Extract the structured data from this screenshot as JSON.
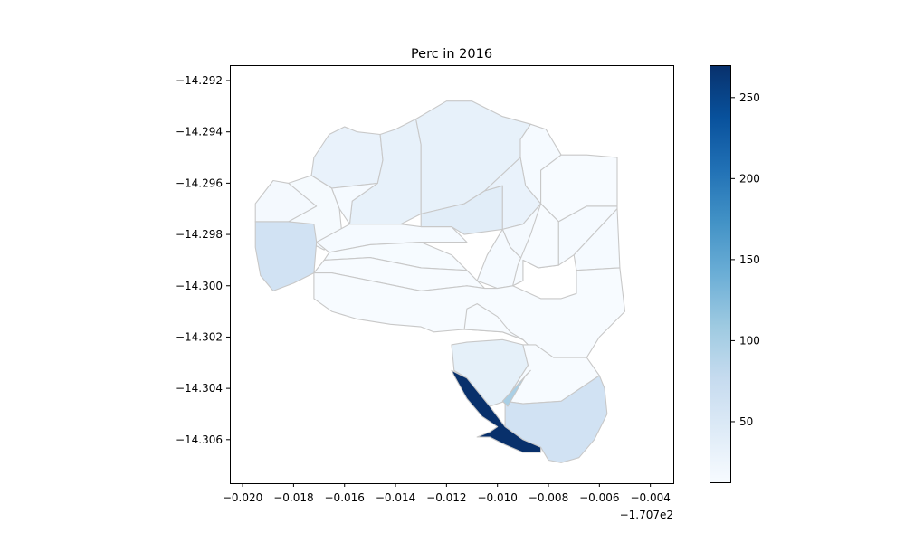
{
  "chart_data": {
    "type": "choropleth",
    "title": "Perc in 2016",
    "xlabel": "",
    "ylabel": "",
    "x_offset_label": "−1.707e2",
    "xlim": [
      -0.0205,
      -0.0031
    ],
    "ylim": [
      -14.3077,
      -14.2914
    ],
    "x_ticks": [
      -0.02,
      -0.018,
      -0.016,
      -0.014,
      -0.012,
      -0.01,
      -0.008,
      -0.006,
      -0.004
    ],
    "x_tick_labels": [
      "−0.020",
      "−0.018",
      "−0.016",
      "−0.014",
      "−0.012",
      "−0.010",
      "−0.008",
      "−0.006",
      "−0.004"
    ],
    "y_ticks": [
      -14.292,
      -14.294,
      -14.296,
      -14.298,
      -14.3,
      -14.302,
      -14.304,
      -14.306
    ],
    "y_tick_labels": [
      "−14.292",
      "−14.294",
      "−14.296",
      "−14.298",
      "−14.300",
      "−14.302",
      "−14.304",
      "−14.306"
    ],
    "colormap": "Blues",
    "colorbar": {
      "range": [
        12,
        270
      ],
      "ticks": [
        50,
        100,
        150,
        200,
        250
      ],
      "tick_labels": [
        "50",
        "100",
        "150",
        "200",
        "250"
      ]
    },
    "grid": false,
    "edge_color": "#c8c8c8",
    "regions": [
      {
        "value": 30,
        "points": [
          [
            -0.0166,
            -14.2941
          ],
          [
            -0.016,
            -14.2938
          ],
          [
            -0.0155,
            -14.294
          ],
          [
            -0.0146,
            -14.2941
          ],
          [
            -0.0145,
            -14.2951
          ],
          [
            -0.0147,
            -14.296
          ],
          [
            -0.0165,
            -14.2962
          ],
          [
            -0.0173,
            -14.2957
          ],
          [
            -0.0172,
            -14.295
          ]
        ]
      },
      {
        "value": 33,
        "points": [
          [
            -0.0146,
            -14.2941
          ],
          [
            -0.014,
            -14.2939
          ],
          [
            -0.0132,
            -14.2935
          ],
          [
            -0.013,
            -14.2945
          ],
          [
            -0.013,
            -14.2972
          ],
          [
            -0.0138,
            -14.2976
          ],
          [
            -0.0158,
            -14.2976
          ],
          [
            -0.0157,
            -14.2967
          ],
          [
            -0.0147,
            -14.296
          ],
          [
            -0.0145,
            -14.2951
          ]
        ]
      },
      {
        "value": 32,
        "points": [
          [
            -0.0132,
            -14.2935
          ],
          [
            -0.012,
            -14.2928
          ],
          [
            -0.011,
            -14.2928
          ],
          [
            -0.0098,
            -14.2934
          ],
          [
            -0.0087,
            -14.2937
          ],
          [
            -0.0091,
            -14.2943
          ],
          [
            -0.0091,
            -14.295
          ],
          [
            -0.0105,
            -14.2963
          ],
          [
            -0.0113,
            -14.2968
          ],
          [
            -0.013,
            -14.2972
          ],
          [
            -0.013,
            -14.2945
          ]
        ]
      },
      {
        "value": 14,
        "points": [
          [
            -0.0087,
            -14.2937
          ],
          [
            -0.0081,
            -14.2939
          ],
          [
            -0.0075,
            -14.2949
          ],
          [
            -0.0083,
            -14.2955
          ],
          [
            -0.0083,
            -14.2968
          ],
          [
            -0.0089,
            -14.2961
          ],
          [
            -0.0091,
            -14.295
          ],
          [
            -0.0091,
            -14.2943
          ]
        ]
      },
      {
        "value": 12,
        "points": [
          [
            -0.0083,
            -14.2955
          ],
          [
            -0.0075,
            -14.2949
          ],
          [
            -0.0065,
            -14.2949
          ],
          [
            -0.0053,
            -14.295
          ],
          [
            -0.0053,
            -14.2969
          ],
          [
            -0.0065,
            -14.2969
          ],
          [
            -0.0076,
            -14.2975
          ],
          [
            -0.0083,
            -14.2968
          ]
        ]
      },
      {
        "value": 15,
        "points": [
          [
            -0.0173,
            -14.2957
          ],
          [
            -0.0165,
            -14.2962
          ],
          [
            -0.0162,
            -14.297
          ],
          [
            -0.0161,
            -14.298
          ],
          [
            -0.0168,
            -14.2986
          ],
          [
            -0.018,
            -14.298
          ],
          [
            -0.0187,
            -14.2966
          ],
          [
            -0.0182,
            -14.296
          ]
        ]
      },
      {
        "value": 14,
        "points": [
          [
            -0.0165,
            -14.2962
          ],
          [
            -0.0147,
            -14.296
          ],
          [
            -0.0157,
            -14.2967
          ],
          [
            -0.0158,
            -14.2976
          ],
          [
            -0.0162,
            -14.297
          ]
        ]
      },
      {
        "value": 16,
        "points": [
          [
            -0.0182,
            -14.296
          ],
          [
            -0.0188,
            -14.2959
          ],
          [
            -0.0195,
            -14.2968
          ],
          [
            -0.0195,
            -14.2975
          ],
          [
            -0.0182,
            -14.2975
          ],
          [
            -0.0171,
            -14.2969
          ]
        ]
      },
      {
        "value": 62,
        "points": [
          [
            -0.0195,
            -14.2975
          ],
          [
            -0.0182,
            -14.2975
          ],
          [
            -0.0172,
            -14.2976
          ],
          [
            -0.0171,
            -14.2983
          ],
          [
            -0.0172,
            -14.2995
          ],
          [
            -0.018,
            -14.2999
          ],
          [
            -0.0188,
            -14.3002
          ],
          [
            -0.0193,
            -14.2996
          ],
          [
            -0.0195,
            -14.2985
          ]
        ]
      },
      {
        "value": 14,
        "points": [
          [
            -0.0171,
            -14.2983
          ],
          [
            -0.0158,
            -14.2976
          ],
          [
            -0.0138,
            -14.2976
          ],
          [
            -0.013,
            -14.2977
          ],
          [
            -0.0118,
            -14.2977
          ],
          [
            -0.0112,
            -14.2983
          ],
          [
            -0.013,
            -14.2983
          ],
          [
            -0.015,
            -14.2984
          ],
          [
            -0.0166,
            -14.2987
          ]
        ]
      },
      {
        "value": 13,
        "points": [
          [
            -0.0166,
            -14.2987
          ],
          [
            -0.015,
            -14.2984
          ],
          [
            -0.013,
            -14.2983
          ],
          [
            -0.0118,
            -14.2988
          ],
          [
            -0.0112,
            -14.2994
          ],
          [
            -0.013,
            -14.2993
          ],
          [
            -0.015,
            -14.2989
          ],
          [
            -0.0168,
            -14.299
          ]
        ]
      },
      {
        "value": 12,
        "points": [
          [
            -0.0172,
            -14.2995
          ],
          [
            -0.0168,
            -14.299
          ],
          [
            -0.015,
            -14.2989
          ],
          [
            -0.013,
            -14.2993
          ],
          [
            -0.0112,
            -14.2994
          ],
          [
            -0.0108,
            -14.2998
          ],
          [
            -0.0105,
            -14.3001
          ],
          [
            -0.0112,
            -14.3
          ],
          [
            -0.013,
            -14.3002
          ],
          [
            -0.015,
            -14.2998
          ],
          [
            -0.0165,
            -14.2995
          ]
        ]
      },
      {
        "value": 40,
        "points": [
          [
            -0.013,
            -14.2977
          ],
          [
            -0.013,
            -14.2972
          ],
          [
            -0.0113,
            -14.2968
          ],
          [
            -0.0105,
            -14.2963
          ],
          [
            -0.0098,
            -14.2961
          ],
          [
            -0.0098,
            -14.2978
          ],
          [
            -0.0113,
            -14.298
          ],
          [
            -0.0118,
            -14.2977
          ]
        ]
      },
      {
        "value": 30,
        "points": [
          [
            -0.0105,
            -14.2963
          ],
          [
            -0.0091,
            -14.295
          ],
          [
            -0.0089,
            -14.2961
          ],
          [
            -0.0083,
            -14.2968
          ],
          [
            -0.009,
            -14.2976
          ],
          [
            -0.0098,
            -14.2978
          ],
          [
            -0.0098,
            -14.2961
          ]
        ]
      },
      {
        "value": 16,
        "points": [
          [
            -0.0098,
            -14.2978
          ],
          [
            -0.009,
            -14.2976
          ],
          [
            -0.0083,
            -14.2968
          ],
          [
            -0.0076,
            -14.2975
          ],
          [
            -0.0076,
            -14.2992
          ],
          [
            -0.0084,
            -14.2993
          ],
          [
            -0.009,
            -14.299
          ],
          [
            -0.0095,
            -14.2985
          ]
        ]
      },
      {
        "value": 14,
        "points": [
          [
            -0.0108,
            -14.2998
          ],
          [
            -0.0104,
            -14.2988
          ],
          [
            -0.0098,
            -14.2978
          ],
          [
            -0.0095,
            -14.2985
          ],
          [
            -0.009,
            -14.299
          ],
          [
            -0.009,
            -14.2998
          ],
          [
            -0.0094,
            -14.3
          ],
          [
            -0.01,
            -14.3001
          ]
        ]
      },
      {
        "value": 12,
        "points": [
          [
            -0.0094,
            -14.3
          ],
          [
            -0.009,
            -14.2998
          ],
          [
            -0.009,
            -14.299
          ],
          [
            -0.0084,
            -14.2993
          ],
          [
            -0.0076,
            -14.2992
          ],
          [
            -0.0076,
            -14.2975
          ],
          [
            -0.0083,
            -14.2968
          ],
          [
            -0.0087,
            -14.298
          ],
          [
            -0.0092,
            -14.2992
          ]
        ]
      },
      {
        "value": 14,
        "points": [
          [
            -0.0076,
            -14.2992
          ],
          [
            -0.0076,
            -14.2975
          ],
          [
            -0.0065,
            -14.2969
          ],
          [
            -0.0053,
            -14.2969
          ],
          [
            -0.0053,
            -14.297
          ],
          [
            -0.007,
            -14.2988
          ]
        ]
      },
      {
        "value": 14,
        "points": [
          [
            -0.007,
            -14.2988
          ],
          [
            -0.0053,
            -14.297
          ],
          [
            -0.0052,
            -14.2993
          ],
          [
            -0.0069,
            -14.2994
          ]
        ]
      },
      {
        "value": 12,
        "points": [
          [
            -0.013,
            -14.3002
          ],
          [
            -0.0112,
            -14.3
          ],
          [
            -0.0105,
            -14.3001
          ],
          [
            -0.01,
            -14.3001
          ],
          [
            -0.0094,
            -14.3
          ],
          [
            -0.0083,
            -14.3005
          ],
          [
            -0.0075,
            -14.3005
          ],
          [
            -0.0069,
            -14.3003
          ],
          [
            -0.0069,
            -14.2994
          ],
          [
            -0.0052,
            -14.2993
          ],
          [
            -0.005,
            -14.301
          ],
          [
            -0.006,
            -14.302
          ],
          [
            -0.0065,
            -14.3028
          ],
          [
            -0.0083,
            -14.3028
          ],
          [
            -0.009,
            -14.3021
          ],
          [
            -0.0098,
            -14.3018
          ],
          [
            -0.0113,
            -14.3017
          ],
          [
            -0.0125,
            -14.3018
          ],
          [
            -0.013,
            -14.3016
          ],
          [
            -0.0142,
            -14.3015
          ],
          [
            -0.0155,
            -14.3013
          ],
          [
            -0.0165,
            -14.301
          ],
          [
            -0.0172,
            -14.3005
          ],
          [
            -0.0172,
            -14.2995
          ],
          [
            -0.0165,
            -14.2995
          ],
          [
            -0.015,
            -14.2998
          ]
        ]
      },
      {
        "value": 12,
        "points": [
          [
            -0.0113,
            -14.3017
          ],
          [
            -0.0098,
            -14.3018
          ],
          [
            -0.009,
            -14.3021
          ],
          [
            -0.0095,
            -14.3018
          ],
          [
            -0.01,
            -14.3012
          ],
          [
            -0.0108,
            -14.3007
          ],
          [
            -0.0112,
            -14.3009
          ]
        ]
      },
      {
        "value": 35,
        "points": [
          [
            -0.0118,
            -14.3023
          ],
          [
            -0.0112,
            -14.3022
          ],
          [
            -0.0098,
            -14.3021
          ],
          [
            -0.009,
            -14.3023
          ],
          [
            -0.0088,
            -14.3031
          ],
          [
            -0.0097,
            -14.3045
          ],
          [
            -0.0103,
            -14.3047
          ],
          [
            -0.0112,
            -14.3036
          ],
          [
            -0.0117,
            -14.3033
          ]
        ]
      },
      {
        "value": 12,
        "points": [
          [
            -0.009,
            -14.3023
          ],
          [
            -0.0085,
            -14.3023
          ],
          [
            -0.0078,
            -14.3028
          ],
          [
            -0.0065,
            -14.3028
          ],
          [
            -0.006,
            -14.3035
          ],
          [
            -0.0075,
            -14.3045
          ],
          [
            -0.009,
            -14.3046
          ],
          [
            -0.0097,
            -14.3045
          ],
          [
            -0.0088,
            -14.3031
          ]
        ]
      },
      {
        "value": 62,
        "points": [
          [
            -0.0097,
            -14.3045
          ],
          [
            -0.009,
            -14.3046
          ],
          [
            -0.0075,
            -14.3045
          ],
          [
            -0.006,
            -14.3035
          ],
          [
            -0.0058,
            -14.304
          ],
          [
            -0.0057,
            -14.305
          ],
          [
            -0.0062,
            -14.306
          ],
          [
            -0.0068,
            -14.3067
          ],
          [
            -0.0075,
            -14.3069
          ],
          [
            -0.008,
            -14.3068
          ],
          [
            -0.0083,
            -14.3063
          ],
          [
            -0.009,
            -14.306
          ],
          [
            -0.0097,
            -14.3055
          ]
        ]
      },
      {
        "value": 100,
        "points": [
          [
            -0.0098,
            -14.3045
          ],
          [
            -0.0096,
            -14.3047
          ],
          [
            -0.0089,
            -14.3035
          ],
          [
            -0.0087,
            -14.3033
          ]
        ]
      },
      {
        "value": 270,
        "points": [
          [
            -0.0118,
            -14.3033
          ],
          [
            -0.0117,
            -14.3035
          ],
          [
            -0.0112,
            -14.3044
          ],
          [
            -0.0106,
            -14.3051
          ],
          [
            -0.01,
            -14.3055
          ],
          [
            -0.0103,
            -14.3057
          ],
          [
            -0.0108,
            -14.3059
          ],
          [
            -0.0103,
            -14.3059
          ],
          [
            -0.0097,
            -14.3062
          ],
          [
            -0.009,
            -14.3065
          ],
          [
            -0.0083,
            -14.3065
          ],
          [
            -0.0083,
            -14.3063
          ],
          [
            -0.009,
            -14.306
          ],
          [
            -0.0097,
            -14.3055
          ],
          [
            -0.0103,
            -14.3047
          ],
          [
            -0.0112,
            -14.3036
          ]
        ]
      }
    ]
  }
}
